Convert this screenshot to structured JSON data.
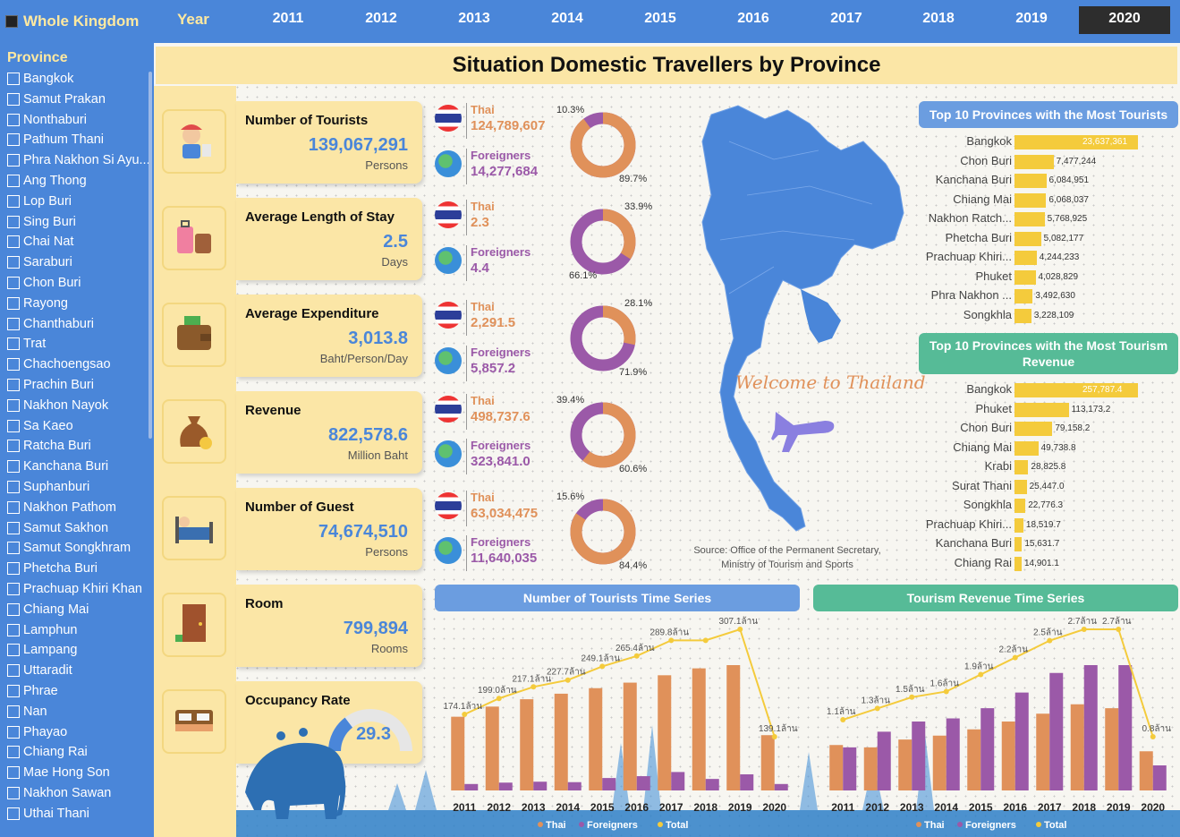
{
  "nav": {
    "whole_kingdom": "Whole Kingdom",
    "year_label": "Year",
    "years": [
      "2011",
      "2012",
      "2013",
      "2014",
      "2015",
      "2016",
      "2017",
      "2018",
      "2019",
      "2020"
    ],
    "selected_year": "2020"
  },
  "sidebar": {
    "title": "Province",
    "provinces": [
      "Bangkok",
      "Samut Prakan",
      "Nonthaburi",
      "Pathum Thani",
      "Phra Nakhon Si Ayu...",
      "Ang Thong",
      "Lop Buri",
      "Sing Buri",
      "Chai Nat",
      "Saraburi",
      "Chon Buri",
      "Rayong",
      "Chanthaburi",
      "Trat",
      "Chachoengsao",
      "Prachin Buri",
      "Nakhon Nayok",
      "Sa Kaeo",
      "Ratcha Buri",
      "Kanchana Buri",
      "Suphanburi",
      "Nakhon Pathom",
      "Samut Sakhon",
      "Samut Songkhram",
      "Phetcha Buri",
      "Prachuap Khiri Khan",
      "Chiang Mai",
      "Lamphun",
      "Lampang",
      "Uttaradit",
      "Phrae",
      "Nan",
      "Phayao",
      "Chiang Rai",
      "Mae Hong Son",
      "Nakhon Sawan",
      "Uthai Thani"
    ]
  },
  "page_title": "Situation Domestic Travellers by Province",
  "metrics": [
    {
      "label": "Number of Tourists",
      "value": "139,067,291",
      "unit": "Persons",
      "icon": "tourist-icon"
    },
    {
      "label": "Average Length of Stay",
      "value": "2.5",
      "unit": "Days",
      "icon": "luggage-icon"
    },
    {
      "label": "Average Expenditure",
      "value": "3,013.8",
      "unit": "Baht/Person/Day",
      "icon": "wallet-icon"
    },
    {
      "label": "Revenue",
      "value": "822,578.6",
      "unit": "Million Baht",
      "icon": "money-bag-icon"
    },
    {
      "label": "Number of Guest",
      "value": "74,674,510",
      "unit": "Persons",
      "icon": "guest-bed-icon"
    },
    {
      "label": "Room",
      "value": "799,894",
      "unit": "Rooms",
      "icon": "door-icon"
    },
    {
      "label": "Occupancy Rate",
      "value": "29.3",
      "unit": "",
      "icon": "bed-icon"
    }
  ],
  "breakdowns": [
    {
      "thai_label": "Thai",
      "thai_value": "124,789,607",
      "for_label": "Foreigners",
      "for_value": "14,277,684",
      "small_pct": "10.3%",
      "large_pct": "89.7%",
      "thai_share": 89.7
    },
    {
      "thai_label": "Thai",
      "thai_value": "2.3",
      "for_label": "Foreigners",
      "for_value": "4.4",
      "small_pct": "33.9%",
      "large_pct": "66.1%",
      "thai_share": 33.9
    },
    {
      "thai_label": "Thai",
      "thai_value": "2,291.5",
      "for_label": "Foreigners",
      "for_value": "5,857.2",
      "small_pct": "28.1%",
      "large_pct": "71.9%",
      "thai_share": 28.1
    },
    {
      "thai_label": "Thai",
      "thai_value": "498,737.6",
      "for_label": "Foreigners",
      "for_value": "323,841.0",
      "small_pct": "39.4%",
      "large_pct": "60.6%",
      "thai_share": 60.6
    },
    {
      "thai_label": "Thai",
      "thai_value": "63,034,475",
      "for_label": "Foreigners",
      "for_value": "11,640,035",
      "small_pct": "15.6%",
      "large_pct": "84.4%",
      "thai_share": 84.4
    }
  ],
  "occupancy_rate": 29.3,
  "map": {
    "welcome": "Welcome to Thailand",
    "source_line1": "Source: Office of the Permanent Secretary,",
    "source_line2": "Ministry of Tourism and Sports"
  },
  "top_tourists": {
    "title": "Top 10 Provinces with the Most Tourists",
    "items": [
      {
        "name": "Bangkok",
        "value": 23637361,
        "label": "23,637,361"
      },
      {
        "name": "Chon Buri",
        "value": 7477244,
        "label": "7,477,244"
      },
      {
        "name": "Kanchana Buri",
        "value": 6084951,
        "label": "6,084,951"
      },
      {
        "name": "Chiang Mai",
        "value": 6068037,
        "label": "6,068,037"
      },
      {
        "name": "Nakhon Ratch...",
        "value": 5768925,
        "label": "5,768,925"
      },
      {
        "name": "Phetcha Buri",
        "value": 5082177,
        "label": "5,082,177"
      },
      {
        "name": "Prachuap Khiri...",
        "value": 4244233,
        "label": "4,244,233"
      },
      {
        "name": "Phuket",
        "value": 4028829,
        "label": "4,028,829"
      },
      {
        "name": "Phra Nakhon ...",
        "value": 3492630,
        "label": "3,492,630"
      },
      {
        "name": "Songkhla",
        "value": 3228109,
        "label": "3,228,109"
      }
    ]
  },
  "top_revenue": {
    "title": "Top 10 Provinces with the Most Tourism Revenue",
    "items": [
      {
        "name": "Bangkok",
        "value": 257787.4,
        "label": "257,787.4"
      },
      {
        "name": "Phuket",
        "value": 113173.2,
        "label": "113,173.2"
      },
      {
        "name": "Chon Buri",
        "value": 79158.2,
        "label": "79,158.2"
      },
      {
        "name": "Chiang Mai",
        "value": 49738.8,
        "label": "49,738.8"
      },
      {
        "name": "Krabi",
        "value": 28825.8,
        "label": "28,825.8"
      },
      {
        "name": "Surat Thani",
        "value": 25447.0,
        "label": "25,447.0"
      },
      {
        "name": "Songkhla",
        "value": 22776.3,
        "label": "22,776.3"
      },
      {
        "name": "Prachuap Khiri...",
        "value": 18519.7,
        "label": "18,519.7"
      },
      {
        "name": "Kanchana Buri",
        "value": 15631.7,
        "label": "15,631.7"
      },
      {
        "name": "Chiang Rai",
        "value": 14901.1,
        "label": "14,901.1"
      }
    ]
  },
  "chart_data": [
    {
      "type": "bar",
      "title": "Number of Tourists Time Series",
      "categories": [
        "2011",
        "2012",
        "2013",
        "2014",
        "2015",
        "2016",
        "2017",
        "2018",
        "2019",
        "2020"
      ],
      "series": [
        {
          "name": "Thai",
          "values": [
            160,
            182,
            198,
            210,
            222,
            234,
            250,
            265,
            272,
            120
          ]
        },
        {
          "name": "Foreigners",
          "values": [
            14,
            17,
            19,
            18,
            27,
            31,
            40,
            25,
            35,
            14
          ]
        }
      ],
      "line": {
        "name": "Total",
        "values": [
          174.1,
          199.0,
          217.1,
          227.7,
          249.1,
          265.4,
          289.8,
          289.8,
          307.1,
          139.1
        ],
        "labels": [
          "174.1ล้าน",
          "199.0ล้าน",
          "217.1ล้าน",
          "227.7ล้าน",
          "249.1ล้าน",
          "265.4ล้าน",
          "289.8ล้าน",
          "",
          "307.1ล้าน",
          "139.1ล้าน"
        ]
      },
      "legend": [
        "Thai",
        "Foreigners",
        "Total"
      ]
    },
    {
      "type": "bar",
      "title": "Tourism Revenue Time Series",
      "categories": [
        "2011",
        "2012",
        "2013",
        "2014",
        "2015",
        "2016",
        "2017",
        "2018",
        "2019",
        "2020"
      ],
      "series": [
        {
          "name": "Thai",
          "values": [
            0.58,
            0.55,
            0.65,
            0.7,
            0.78,
            0.88,
            0.98,
            1.1,
            1.05,
            0.5
          ]
        },
        {
          "name": "Foreigners",
          "values": [
            0.55,
            0.75,
            0.88,
            0.92,
            1.05,
            1.25,
            1.5,
            1.6,
            1.6,
            0.32
          ]
        }
      ],
      "line": {
        "name": "Total",
        "values": [
          1.1,
          1.3,
          1.5,
          1.6,
          1.9,
          2.2,
          2.5,
          2.7,
          2.7,
          0.8
        ],
        "labels": [
          "1.1ล้าน",
          "1.3ล้าน",
          "1.5ล้าน",
          "1.6ล้าน",
          "1.9ล้าน",
          "2.2ล้าน",
          "2.5ล้าน",
          "2.7ล้าน",
          "2.7ล้าน",
          "0.8ล้าน"
        ]
      },
      "legend": [
        "Thai",
        "Foreigners",
        "Total"
      ]
    }
  ]
}
